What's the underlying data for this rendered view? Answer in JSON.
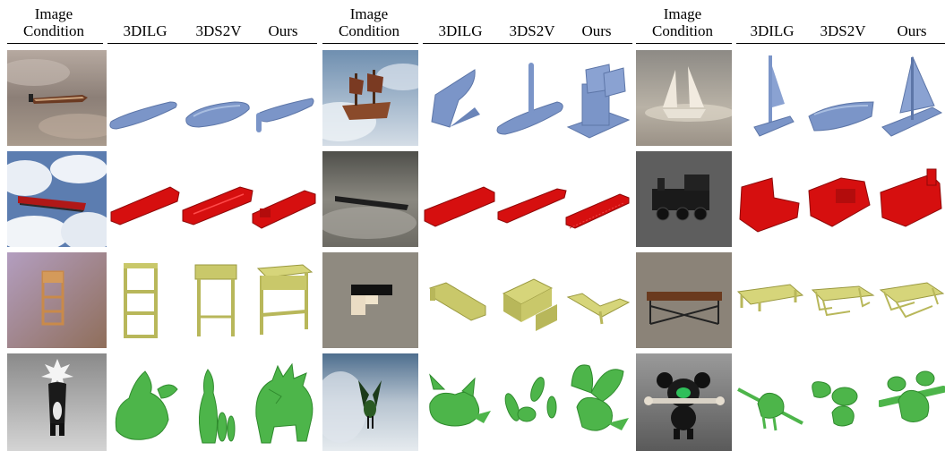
{
  "figure": {
    "column_headers": [
      "Image\nCondition",
      "3DILG",
      "3DS2V",
      "Ours",
      "Image\nCondition",
      "3DILG",
      "3DS2V",
      "Ours",
      "Image\nCondition",
      "3DILG",
      "3DS2V",
      "Ours"
    ],
    "rows": [
      {
        "name": "boats",
        "color": "#7b95c8"
      },
      {
        "name": "trains",
        "color": "#d60f0f"
      },
      {
        "name": "furniture",
        "color": "#c9c86a"
      },
      {
        "name": "creatures",
        "color": "#4db54a"
      }
    ]
  }
}
